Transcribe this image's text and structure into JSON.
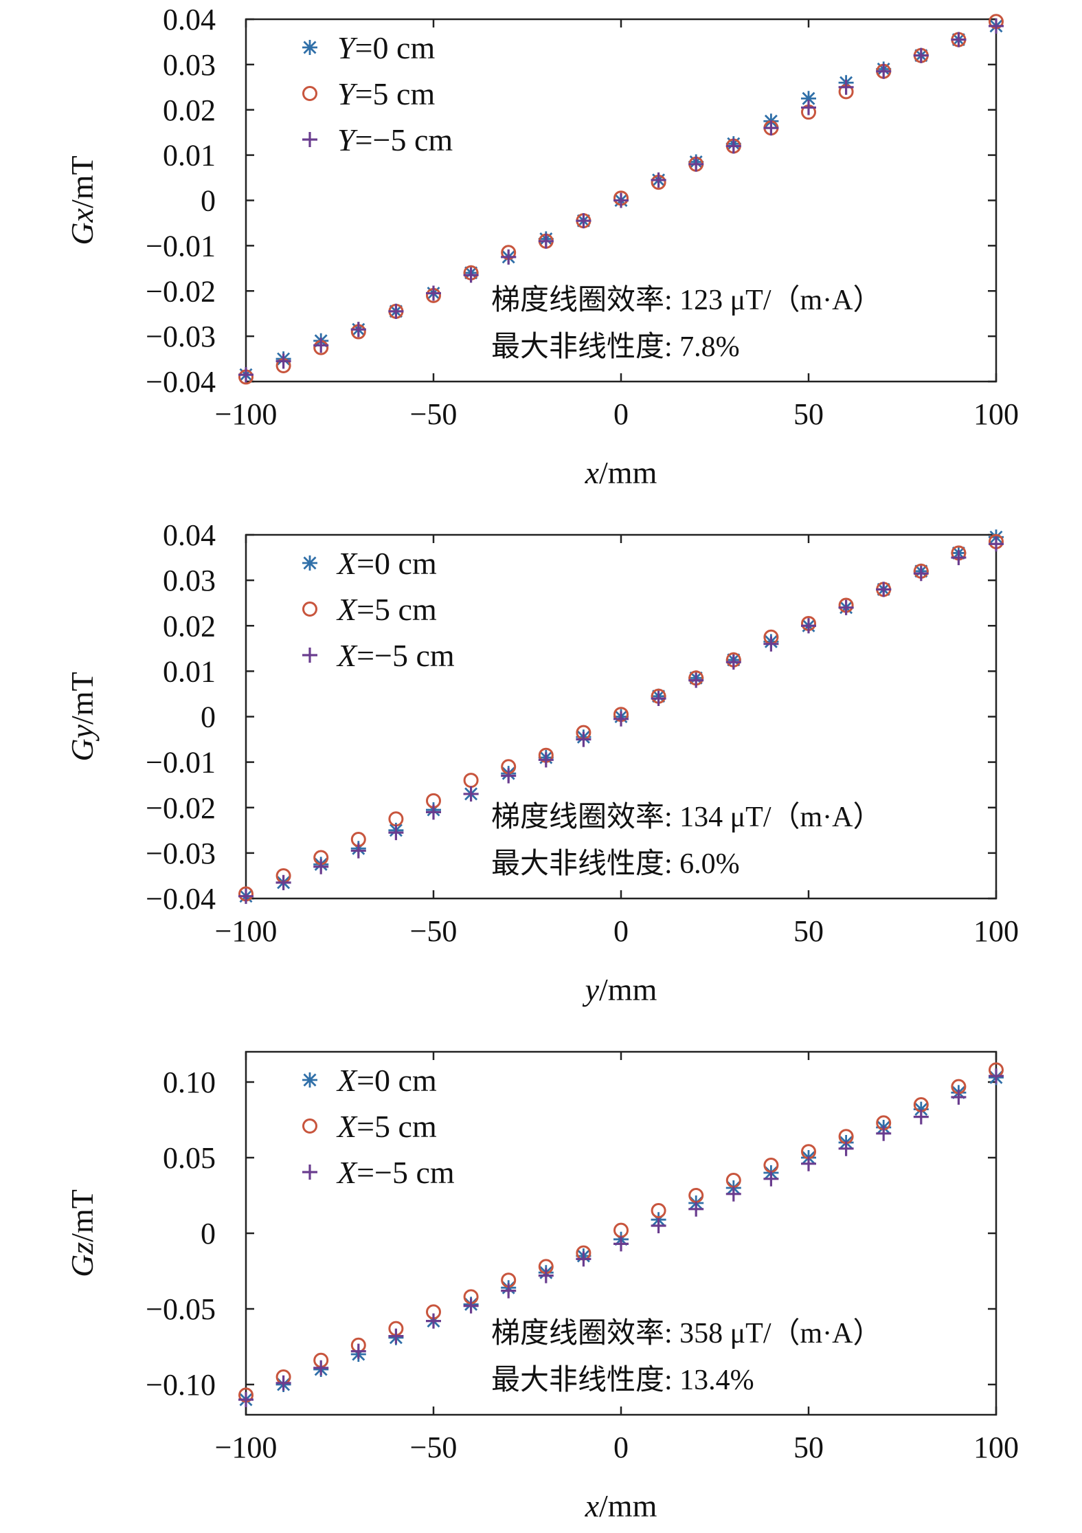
{
  "chart_data": [
    {
      "type": "scatter",
      "title": "",
      "xlabel": "x/mm",
      "xlabel_var": "x",
      "xlabel_unit": "/mm",
      "ylabel": "Gx/mT",
      "ylabel_var": "Gx",
      "ylabel_unit": "/mT",
      "xlim": [
        -100,
        100
      ],
      "ylim": [
        -0.04,
        0.04
      ],
      "xticks": [
        -100,
        -50,
        0,
        50,
        100
      ],
      "xtick_labels": [
        "−100",
        "−50",
        "0",
        "50",
        "100"
      ],
      "yticks": [
        0.04,
        0.03,
        0.02,
        0.01,
        0,
        -0.01,
        -0.02,
        -0.03,
        -0.04
      ],
      "ytick_labels": [
        "0.04",
        "0.03",
        "0.02",
        "0.01",
        "0",
        "−0.01",
        "−0.02",
        "−0.03",
        "−0.04"
      ],
      "legend_position": "top-left",
      "annotation_lines": [
        "梯度线圈效率: 123 μT/（m·A）",
        "最大非线性度: 7.8%"
      ],
      "series": [
        {
          "name": "Y=0 cm",
          "name_var": "Y",
          "name_rest": "=0 cm",
          "marker": "asterisk",
          "color": "#2f6fa8",
          "x": [
            -100,
            -90,
            -80,
            -70,
            -60,
            -50,
            -40,
            -30,
            -20,
            -10,
            0,
            10,
            20,
            30,
            40,
            50,
            60,
            70,
            80,
            90,
            100
          ],
          "y": [
            -0.0385,
            -0.035,
            -0.031,
            -0.0285,
            -0.0245,
            -0.0205,
            -0.016,
            -0.0125,
            -0.0085,
            -0.0045,
            0.0,
            0.0045,
            0.0085,
            0.0125,
            0.0175,
            0.0225,
            0.026,
            0.029,
            0.032,
            0.0355,
            0.0385
          ]
        },
        {
          "name": "Y=5 cm",
          "name_var": "Y",
          "name_rest": "=5 cm",
          "marker": "circle",
          "color": "#c8553d",
          "x": [
            -100,
            -90,
            -80,
            -70,
            -60,
            -50,
            -40,
            -30,
            -20,
            -10,
            0,
            10,
            20,
            30,
            40,
            50,
            60,
            70,
            80,
            90,
            100
          ],
          "y": [
            -0.039,
            -0.0365,
            -0.0325,
            -0.029,
            -0.0245,
            -0.021,
            -0.016,
            -0.0115,
            -0.009,
            -0.0045,
            0.0005,
            0.004,
            0.008,
            0.012,
            0.016,
            0.0195,
            0.024,
            0.0285,
            0.032,
            0.0355,
            0.0395
          ]
        },
        {
          "name": "Y=−5 cm",
          "name_var": "Y",
          "name_rest": "=−5 cm",
          "marker": "plus",
          "color": "#6a3d8f",
          "x": [
            -100,
            -90,
            -80,
            -70,
            -60,
            -50,
            -40,
            -30,
            -20,
            -10,
            0,
            10,
            20,
            30,
            40,
            50,
            60,
            70,
            80,
            90,
            100
          ],
          "y": [
            -0.0385,
            -0.0355,
            -0.032,
            -0.0285,
            -0.0245,
            -0.0205,
            -0.0165,
            -0.0125,
            -0.009,
            -0.0045,
            0.0,
            0.0045,
            0.008,
            0.012,
            0.016,
            0.0205,
            0.025,
            0.0285,
            0.032,
            0.0355,
            0.0385
          ]
        }
      ]
    },
    {
      "type": "scatter",
      "title": "",
      "xlabel": "y/mm",
      "xlabel_var": "y",
      "xlabel_unit": "/mm",
      "ylabel": "Gy/mT",
      "ylabel_var": "Gy",
      "ylabel_unit": "/mT",
      "xlim": [
        -100,
        100
      ],
      "ylim": [
        -0.04,
        0.04
      ],
      "xticks": [
        -100,
        -50,
        0,
        50,
        100
      ],
      "xtick_labels": [
        "−100",
        "−50",
        "0",
        "50",
        "100"
      ],
      "yticks": [
        0.04,
        0.03,
        0.02,
        0.01,
        0,
        -0.01,
        -0.02,
        -0.03,
        -0.04
      ],
      "ytick_labels": [
        "0.04",
        "0.03",
        "0.02",
        "0.01",
        "0",
        "−0.01",
        "−0.02",
        "−0.03",
        "−0.04"
      ],
      "legend_position": "top-left",
      "annotation_lines": [
        "梯度线圈效率: 134 μT/（m·A）",
        "最大非线性度: 6.0%"
      ],
      "series": [
        {
          "name": "X=0 cm",
          "name_var": "X",
          "name_rest": "=0 cm",
          "marker": "asterisk",
          "color": "#2f6fa8",
          "x": [
            -100,
            -90,
            -80,
            -70,
            -60,
            -50,
            -40,
            -30,
            -20,
            -10,
            0,
            10,
            20,
            30,
            40,
            50,
            60,
            70,
            80,
            90,
            100
          ],
          "y": [
            -0.0395,
            -0.0365,
            -0.0325,
            -0.029,
            -0.025,
            -0.0205,
            -0.017,
            -0.0125,
            -0.009,
            -0.0045,
            0.0,
            0.0045,
            0.0085,
            0.0125,
            0.0165,
            0.02,
            0.024,
            0.028,
            0.032,
            0.036,
            0.0395
          ]
        },
        {
          "name": "X=5 cm",
          "name_var": "X",
          "name_rest": "=5 cm",
          "marker": "circle",
          "color": "#c8553d",
          "x": [
            -100,
            -90,
            -80,
            -70,
            -60,
            -50,
            -40,
            -30,
            -20,
            -10,
            0,
            10,
            20,
            30,
            40,
            50,
            60,
            70,
            80,
            90,
            100
          ],
          "y": [
            -0.039,
            -0.035,
            -0.031,
            -0.027,
            -0.0225,
            -0.0185,
            -0.014,
            -0.011,
            -0.0085,
            -0.0035,
            0.0005,
            0.0045,
            0.0085,
            0.0125,
            0.0175,
            0.0205,
            0.0245,
            0.028,
            0.032,
            0.036,
            0.0385
          ]
        },
        {
          "name": "X=−5 cm",
          "name_var": "X",
          "name_rest": "=−5 cm",
          "marker": "plus",
          "color": "#6a3d8f",
          "x": [
            -100,
            -90,
            -80,
            -70,
            -60,
            -50,
            -40,
            -30,
            -20,
            -10,
            0,
            10,
            20,
            30,
            40,
            50,
            60,
            70,
            80,
            90,
            100
          ],
          "y": [
            -0.0395,
            -0.0365,
            -0.033,
            -0.0295,
            -0.0255,
            -0.021,
            -0.017,
            -0.013,
            -0.0095,
            -0.005,
            -0.0005,
            0.004,
            0.008,
            0.012,
            0.016,
            0.02,
            0.024,
            0.028,
            0.0315,
            0.035,
            0.038
          ]
        }
      ]
    },
    {
      "type": "scatter",
      "title": "",
      "xlabel": "x/mm",
      "xlabel_var": "x",
      "xlabel_unit": "/mm",
      "ylabel": "Gz/mT",
      "ylabel_var": "Gz",
      "ylabel_unit": "/mT",
      "xlim": [
        -100,
        100
      ],
      "ylim": [
        -0.12,
        0.12
      ],
      "xticks": [
        -100,
        -50,
        0,
        50,
        100
      ],
      "xtick_labels": [
        "−100",
        "−50",
        "0",
        "50",
        "100"
      ],
      "yticks": [
        0.1,
        0.05,
        0,
        -0.05,
        -0.1
      ],
      "ytick_labels": [
        "0.10",
        "0.05",
        "0",
        "−0.05",
        "−0.10"
      ],
      "legend_position": "top-left",
      "annotation_lines": [
        "梯度线圈效率: 358 μT/（m·A）",
        "最大非线性度: 13.4%"
      ],
      "series": [
        {
          "name": "X=0 cm",
          "name_var": "X",
          "name_rest": "=0 cm",
          "marker": "asterisk",
          "color": "#2f6fa8",
          "x": [
            -100,
            -90,
            -80,
            -70,
            -60,
            -50,
            -40,
            -30,
            -20,
            -10,
            0,
            10,
            20,
            30,
            40,
            50,
            60,
            70,
            80,
            90,
            100
          ],
          "y": [
            -0.11,
            -0.1,
            -0.09,
            -0.08,
            -0.069,
            -0.058,
            -0.047,
            -0.036,
            -0.026,
            -0.015,
            -0.004,
            0.009,
            0.02,
            0.03,
            0.04,
            0.05,
            0.06,
            0.07,
            0.082,
            0.093,
            0.103
          ]
        },
        {
          "name": "X=5 cm",
          "name_var": "X",
          "name_rest": "=5 cm",
          "marker": "circle",
          "color": "#c8553d",
          "x": [
            -100,
            -90,
            -80,
            -70,
            -60,
            -50,
            -40,
            -30,
            -20,
            -10,
            0,
            10,
            20,
            30,
            40,
            50,
            60,
            70,
            80,
            90,
            100
          ],
          "y": [
            -0.107,
            -0.095,
            -0.084,
            -0.074,
            -0.063,
            -0.052,
            -0.042,
            -0.031,
            -0.022,
            -0.013,
            0.002,
            0.015,
            0.025,
            0.035,
            0.045,
            0.054,
            0.064,
            0.073,
            0.085,
            0.097,
            0.108
          ]
        },
        {
          "name": "X=−5 cm",
          "name_var": "X",
          "name_rest": "=−5 cm",
          "marker": "plus",
          "color": "#6a3d8f",
          "x": [
            -100,
            -90,
            -80,
            -70,
            -60,
            -50,
            -40,
            -30,
            -20,
            -10,
            0,
            10,
            20,
            30,
            40,
            50,
            60,
            70,
            80,
            90,
            100
          ],
          "y": [
            -0.11,
            -0.099,
            -0.089,
            -0.078,
            -0.068,
            -0.058,
            -0.048,
            -0.038,
            -0.028,
            -0.017,
            -0.007,
            0.005,
            0.016,
            0.026,
            0.036,
            0.046,
            0.056,
            0.066,
            0.077,
            0.09,
            0.104
          ]
        }
      ]
    }
  ]
}
